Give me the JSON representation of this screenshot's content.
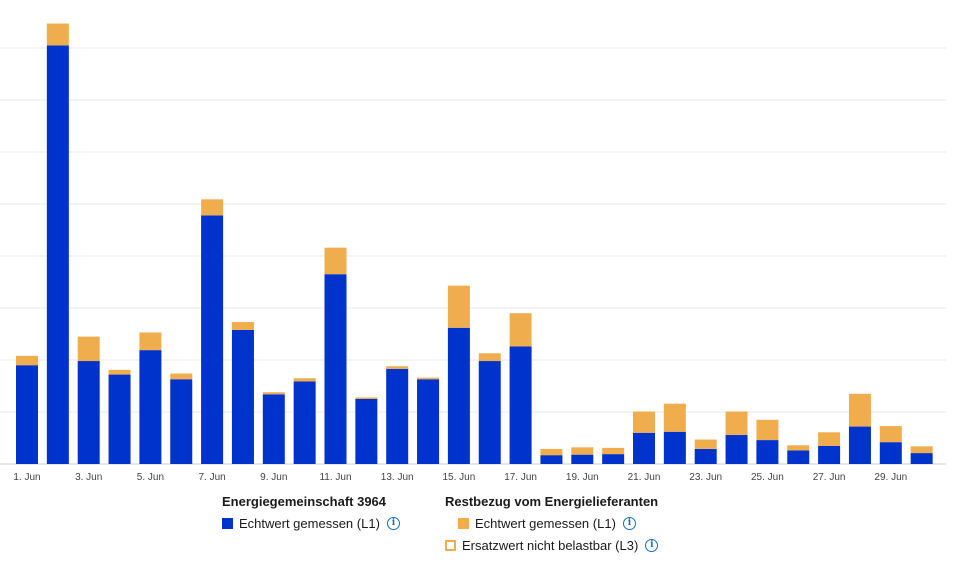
{
  "chart_data": {
    "type": "bar",
    "stacked": true,
    "categories": [
      "1. Jun",
      "2. Jun",
      "3. Jun",
      "4. Jun",
      "5. Jun",
      "6. Jun",
      "7. Jun",
      "8. Jun",
      "9. Jun",
      "10. Jun",
      "11. Jun",
      "12. Jun",
      "13. Jun",
      "14. Jun",
      "15. Jun",
      "16. Jun",
      "17. Jun",
      "18. Jun",
      "19. Jun",
      "20. Jun",
      "21. Jun",
      "22. Jun",
      "23. Jun",
      "24. Jun",
      "25. Jun",
      "26. Jun",
      "27. Jun",
      "28. Jun",
      "29. Jun",
      "30. Jun"
    ],
    "tick_labels": [
      "1. Jun",
      "3. Jun",
      "5. Jun",
      "7. Jun",
      "9. Jun",
      "11. Jun",
      "13. Jun",
      "15. Jun",
      "17. Jun",
      "19. Jun",
      "21. Jun",
      "23. Jun",
      "25. Jun",
      "27. Jun",
      "29. Jun"
    ],
    "series": [
      {
        "name": "Energiegemeinschaft 3964 – Echtwert gemessen (L1)",
        "color": "#0033cc",
        "values": [
          1.9,
          8.05,
          1.98,
          1.72,
          2.19,
          1.63,
          4.78,
          2.58,
          1.34,
          1.59,
          3.65,
          1.25,
          1.83,
          1.63,
          2.62,
          1.98,
          2.26,
          0.17,
          0.18,
          0.19,
          0.6,
          0.62,
          0.29,
          0.56,
          0.46,
          0.26,
          0.35,
          0.72,
          0.42,
          0.21
        ]
      },
      {
        "name": "Restbezug vom Energielieferanten – Echtwert gemessen (L1)",
        "color": "#f0ad4e",
        "values": [
          0.18,
          0.42,
          0.47,
          0.09,
          0.34,
          0.11,
          0.31,
          0.15,
          0.04,
          0.06,
          0.51,
          0.03,
          0.05,
          0.03,
          0.81,
          0.15,
          0.64,
          0.12,
          0.14,
          0.12,
          0.41,
          0.54,
          0.18,
          0.45,
          0.39,
          0.1,
          0.26,
          0.63,
          0.31,
          0.13
        ]
      }
    ],
    "ylim": [
      0,
      8.5
    ],
    "y_gridlines": [
      0,
      1,
      2,
      3,
      4,
      5,
      6,
      7,
      8
    ],
    "xlabel": "",
    "ylabel": "",
    "title": "",
    "grid": true,
    "legend_position": "bottom-center"
  },
  "legend": {
    "group1": {
      "title": "Energiegemeinschaft 3964",
      "items": [
        {
          "label": "Echtwert gemessen (L1)",
          "color": "#0033cc",
          "style": "filled",
          "info": "i"
        }
      ]
    },
    "group2": {
      "title": "Restbezug vom Energielieferanten",
      "items": [
        {
          "label": "Echtwert gemessen (L1)",
          "color": "#f0ad4e",
          "style": "filled",
          "info": "i"
        },
        {
          "label": "Ersatzwert nicht belastbar (L3)",
          "color": "#f0ad4e",
          "style": "outline",
          "info": "i"
        }
      ]
    }
  }
}
